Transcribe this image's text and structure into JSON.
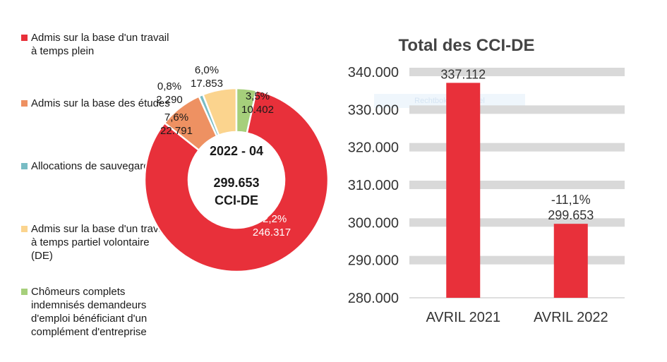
{
  "chart_data": [
    {
      "type": "pie",
      "center_label_line1": "2022 - 04",
      "center_label_line2": "299.653",
      "center_label_line3": "CCI-DE",
      "slices": [
        {
          "name": "Admis sur la base d'un travail à temps plein",
          "percent_label": "82,2%",
          "value_label": "246.317",
          "value": 246317,
          "color": "#e8303a"
        },
        {
          "name": "Admis sur la base des études",
          "percent_label": "7,6%",
          "value_label": "22.791",
          "value": 22791,
          "color": "#ee9162"
        },
        {
          "name": "Allocations de sauvegarde",
          "percent_label": "0,8%",
          "value_label": "2.290",
          "value": 2290,
          "color": "#78bcc4"
        },
        {
          "name": "Admis sur la base d'un travail à temps partiel volontaire (DE)",
          "percent_label": "6,0%",
          "value_label": "17.853",
          "value": 17853,
          "color": "#fbd48e"
        },
        {
          "name": "Chômeurs complets indemnisés demandeurs d'emploi bénéficiant d'un complément d'entreprise",
          "percent_label": "3,5%",
          "value_label": "10.402",
          "value": 10402,
          "color": "#a6cf7b"
        }
      ]
    },
    {
      "type": "bar",
      "title": "Total des CCI-DE",
      "categories": [
        "AVRIL 2021",
        "AVRIL 2022"
      ],
      "values": [
        337112,
        299653
      ],
      "value_labels": [
        "337.112",
        "299.653"
      ],
      "change_labels": [
        "",
        "-11,1%"
      ],
      "color": "#e8303a",
      "grid_color": "#d9d9d9",
      "ylim": [
        280000,
        340000
      ],
      "yticks": [
        280000,
        290000,
        300000,
        310000,
        320000,
        330000,
        340000
      ],
      "ytick_labels": [
        "280.000",
        "290.000",
        "300.000",
        "310.000",
        "320.000",
        "330.000",
        "340.000"
      ]
    }
  ],
  "watermark_text": "Rechtbokeng mipsel"
}
